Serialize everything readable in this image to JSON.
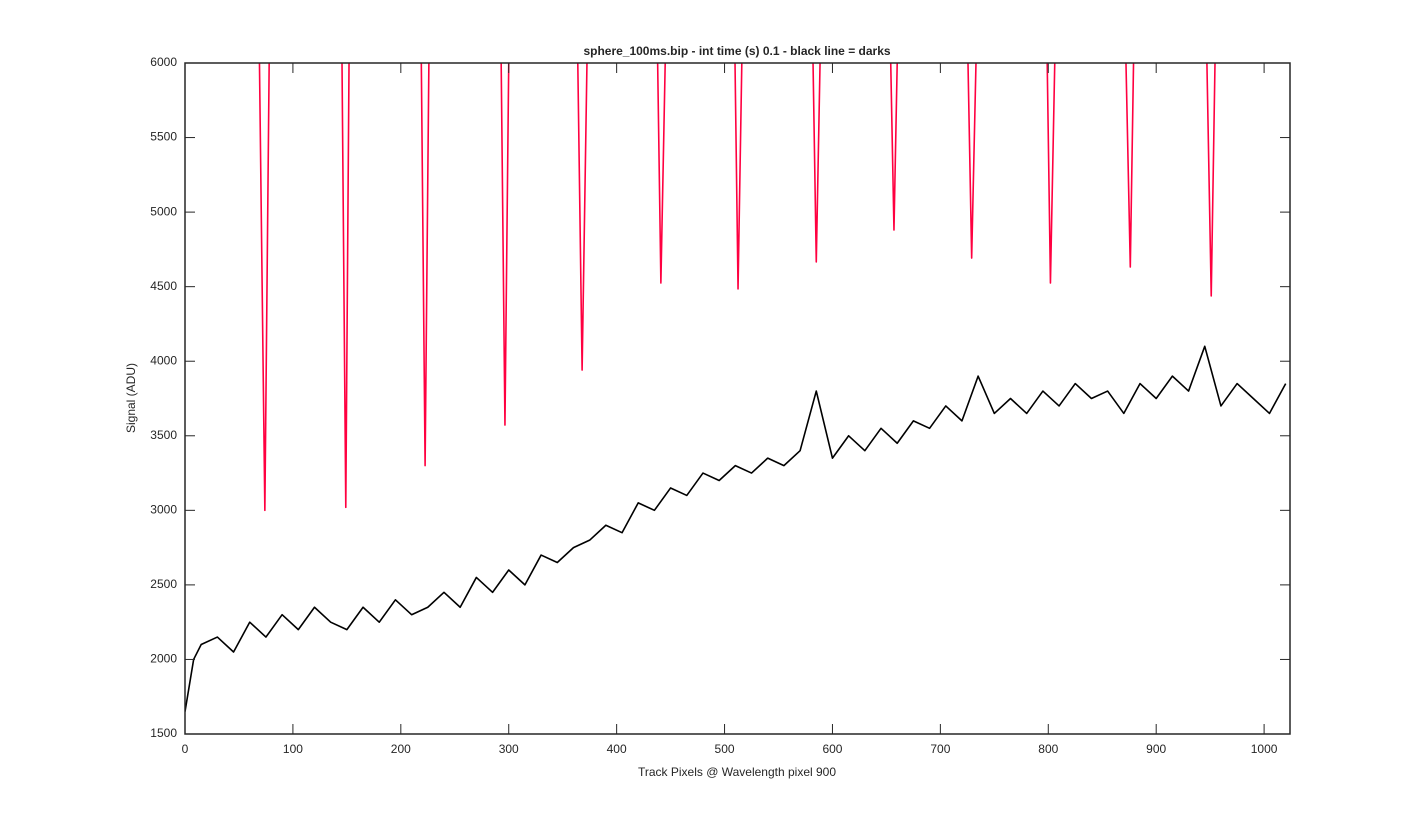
{
  "chart_data": {
    "type": "line",
    "title": "sphere_100ms.bip - int time (s) 0.1 - black line = darks",
    "x_label": "Track Pixels @ Wavelength pixel 900",
    "y_label": "Signal (ADU)",
    "xlim": [
      0,
      1024
    ],
    "xticks": [
      0,
      100,
      200,
      300,
      400,
      500,
      600,
      700,
      800,
      900,
      1000
    ],
    "ylim": [
      1500,
      6000
    ],
    "yticks": [
      1500,
      2000,
      2500,
      3000,
      3500,
      4000,
      4500,
      5000,
      5500,
      6000
    ],
    "series": [
      {
        "color": "#ff0040",
        "x": [
          69,
          74,
          78,
          null,
          145.5,
          149,
          152,
          null,
          219,
          222.5,
          226,
          null,
          293,
          296.5,
          300,
          null,
          364,
          368,
          372.5,
          null,
          438,
          441,
          445,
          null,
          509.7,
          512.5,
          516,
          null,
          582,
          585,
          588.5,
          null,
          654,
          657,
          660,
          null,
          725.6,
          729,
          733,
          null,
          799,
          802,
          806,
          null,
          872,
          876,
          879,
          null,
          947,
          951,
          954.5
        ],
        "values": [
          6000,
          3000,
          6000,
          null,
          6000,
          3020,
          6000,
          null,
          6000,
          3300,
          6000,
          null,
          6000,
          3572,
          6000,
          null,
          6000,
          3941,
          6000,
          null,
          6000,
          4525,
          6000,
          null,
          6000,
          4485,
          6000,
          null,
          6000,
          4666,
          6000,
          null,
          6000,
          4880,
          6000,
          null,
          6000,
          4692,
          6000,
          null,
          6000,
          4525,
          6000,
          null,
          6000,
          4632,
          6000,
          null,
          6000,
          4438,
          6000
        ]
      },
      {
        "color": "#000000",
        "x": [
          0,
          8,
          15,
          30,
          45,
          60,
          75,
          90,
          105,
          120,
          135,
          150,
          165,
          180,
          195,
          210,
          225,
          240,
          255,
          270,
          285,
          300,
          315,
          330,
          345,
          360,
          375,
          390,
          405,
          420,
          435,
          450,
          465,
          480,
          495,
          510,
          525,
          540,
          555,
          570,
          585,
          600,
          615,
          630,
          645,
          660,
          675,
          690,
          705,
          720,
          735,
          750,
          765,
          780,
          795,
          810,
          825,
          840,
          855,
          870,
          885,
          900,
          915,
          930,
          945,
          960,
          975,
          990,
          1005,
          1020
        ],
        "values": [
          1650,
          2000,
          2100,
          2150,
          2050,
          2250,
          2150,
          2300,
          2200,
          2350,
          2250,
          2200,
          2350,
          2250,
          2400,
          2300,
          2350,
          2450,
          2350,
          2550,
          2450,
          2600,
          2500,
          2700,
          2650,
          2750,
          2800,
          2900,
          2850,
          3050,
          3000,
          3150,
          3100,
          3250,
          3200,
          3300,
          3250,
          3350,
          3300,
          3400,
          3800,
          3350,
          3500,
          3400,
          3550,
          3450,
          3600,
          3550,
          3700,
          3600,
          3900,
          3650,
          3750,
          3650,
          3800,
          3700,
          3850,
          3750,
          3800,
          3650,
          3850,
          3750,
          3900,
          3800,
          4100,
          3700,
          3850,
          3750,
          3650,
          3850
        ]
      }
    ]
  }
}
